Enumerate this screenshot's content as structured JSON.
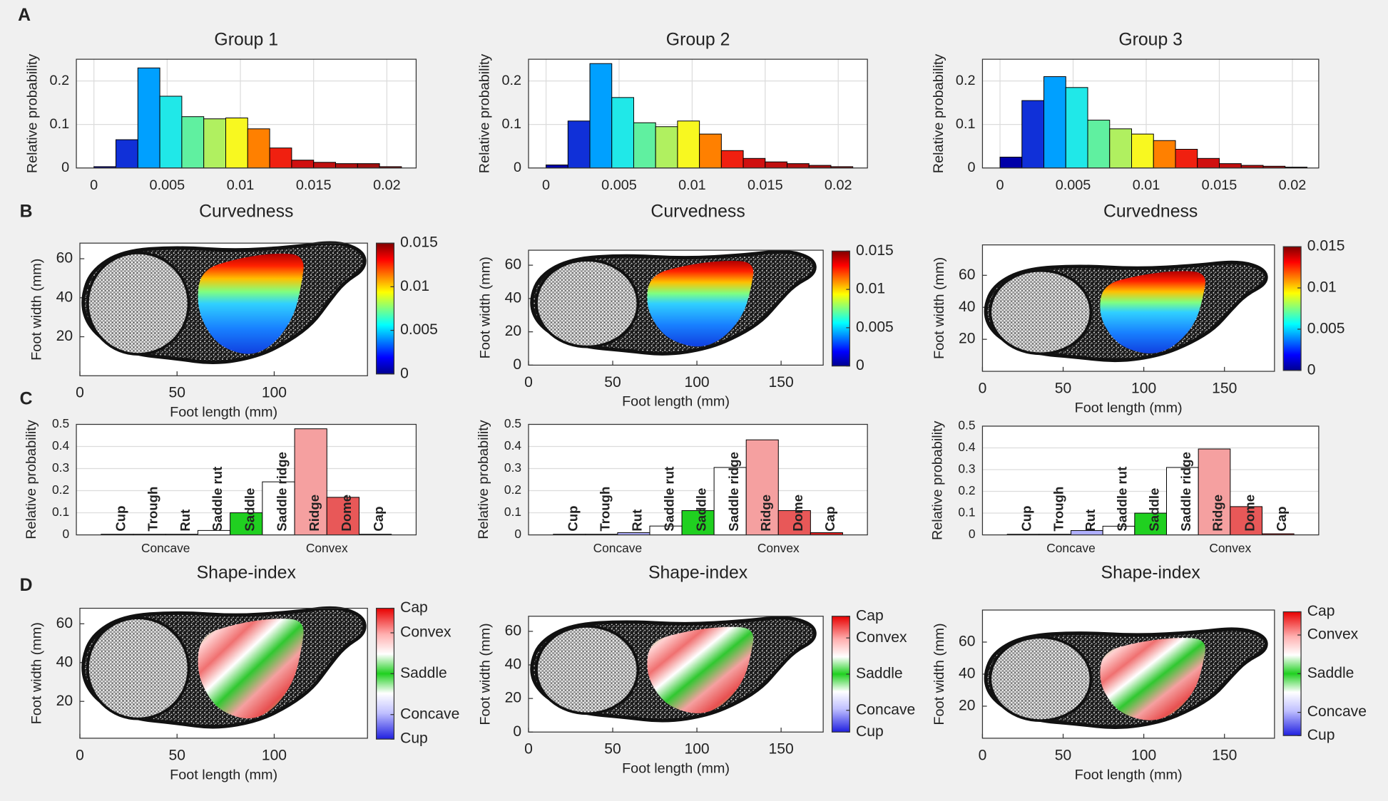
{
  "panel_labels": [
    "A",
    "B",
    "C",
    "D"
  ],
  "chart_data": [
    {
      "type": "histogram",
      "title": "Group 1",
      "xlabel": "Curvedness",
      "ylabel": "Relative probability",
      "bins": [
        0,
        0.0015,
        0.003,
        0.0045,
        0.006,
        0.0075,
        0.009,
        0.0105,
        0.012,
        0.0135,
        0.015,
        0.0165,
        0.018,
        0.0195,
        0.021
      ],
      "values": [
        0.003,
        0.065,
        0.23,
        0.165,
        0.118,
        0.113,
        0.115,
        0.09,
        0.046,
        0.018,
        0.013,
        0.01,
        0.01,
        0.003
      ],
      "colors": [
        "#0000a8",
        "#1030d8",
        "#00a0ff",
        "#20e8e8",
        "#60f0a0",
        "#b0f060",
        "#f8f820",
        "#ff8000",
        "#f02010",
        "#d01010",
        "#c01010",
        "#b01010",
        "#a01010",
        "#901010"
      ],
      "xlim": [
        -0.0012,
        0.022
      ],
      "ylim": [
        0,
        0.25
      ],
      "xticks": [
        0,
        0.005,
        0.01,
        0.015,
        0.02
      ],
      "yticks": [
        0,
        0.1,
        0.2
      ],
      "grid": true
    },
    {
      "type": "histogram",
      "title": "Group 2",
      "xlabel": "Curvedness",
      "ylabel": "Relative probability",
      "bins": [
        0,
        0.0015,
        0.003,
        0.0045,
        0.006,
        0.0075,
        0.009,
        0.0105,
        0.012,
        0.0135,
        0.015,
        0.0165,
        0.018,
        0.0195,
        0.021
      ],
      "values": [
        0.007,
        0.108,
        0.24,
        0.162,
        0.104,
        0.095,
        0.108,
        0.078,
        0.04,
        0.022,
        0.014,
        0.01,
        0.006,
        0.003
      ],
      "colors": [
        "#0000a8",
        "#1030d8",
        "#00a0ff",
        "#20e8e8",
        "#60f0a0",
        "#b0f060",
        "#f8f820",
        "#ff8000",
        "#f02010",
        "#d01010",
        "#c01010",
        "#b01010",
        "#a01010",
        "#901010"
      ],
      "xlim": [
        -0.0012,
        0.022
      ],
      "ylim": [
        0,
        0.25
      ],
      "xticks": [
        0,
        0.005,
        0.01,
        0.015,
        0.02
      ],
      "yticks": [
        0,
        0.1,
        0.2
      ],
      "grid": true
    },
    {
      "type": "histogram",
      "title": "Group 3",
      "xlabel": "Curvedness",
      "ylabel": "Relative probability",
      "bins": [
        0,
        0.0015,
        0.003,
        0.0045,
        0.006,
        0.0075,
        0.009,
        0.0105,
        0.012,
        0.0135,
        0.015,
        0.0165,
        0.018,
        0.0195,
        0.021
      ],
      "values": [
        0.025,
        0.155,
        0.21,
        0.185,
        0.11,
        0.09,
        0.078,
        0.063,
        0.043,
        0.022,
        0.01,
        0.006,
        0.004,
        0.002
      ],
      "colors": [
        "#0000a8",
        "#1030d8",
        "#00a0ff",
        "#20e8e8",
        "#60f0a0",
        "#b0f060",
        "#f8f820",
        "#ff8000",
        "#f02010",
        "#d01010",
        "#c01010",
        "#b01010",
        "#a01010",
        "#901010"
      ],
      "xlim": [
        -0.0012,
        0.0218
      ],
      "ylim": [
        0,
        0.25
      ],
      "xticks": [
        0,
        0.005,
        0.01,
        0.015,
        0.02
      ],
      "yticks": [
        0,
        0.1,
        0.2
      ],
      "grid": true
    },
    {
      "type": "map",
      "xlabel": "Foot length (mm)",
      "ylabel": "Foot width (mm)",
      "map": "curvedness",
      "xlim": [
        0,
        148
      ],
      "ylim": [
        0,
        68
      ],
      "xticks": [
        0,
        50,
        100
      ],
      "yticks": [
        20,
        40,
        60
      ],
      "colorbar": {
        "colormap": "jet",
        "lim": [
          0,
          0.015
        ],
        "ticks": [
          0,
          0.005,
          0.01,
          0.015
        ]
      }
    },
    {
      "type": "map",
      "xlabel": "Foot length (mm)",
      "ylabel": "Foot width (mm)",
      "map": "curvedness",
      "xlim": [
        0,
        175
      ],
      "ylim": [
        0,
        69
      ],
      "xticks": [
        0,
        50,
        100,
        150
      ],
      "yticks": [
        0,
        20,
        40,
        60
      ],
      "colorbar": {
        "colormap": "jet",
        "lim": [
          0,
          0.015
        ],
        "ticks": [
          0,
          0.005,
          0.01,
          0.015
        ]
      }
    },
    {
      "type": "map",
      "xlabel": "Foot length (mm)",
      "ylabel": "Foot width (mm)",
      "map": "curvedness",
      "xlim": [
        0,
        181
      ],
      "ylim": [
        0,
        79
      ],
      "xticks": [
        0,
        50,
        100,
        150
      ],
      "yticks": [
        20,
        40,
        60
      ],
      "colorbar": {
        "colormap": "jet",
        "lim": [
          0,
          0.015
        ],
        "ticks": [
          0,
          0.005,
          0.01,
          0.015
        ]
      }
    },
    {
      "type": "bar",
      "xlabel": "Shape-index",
      "ylabel": "Relative probability",
      "categories": [
        "Cup",
        "Trough",
        "Rut",
        "Saddle rut",
        "Saddle",
        "Saddle ridge",
        "Ridge",
        "Dome",
        "Cap"
      ],
      "values": [
        0.003,
        0.003,
        0.003,
        0.02,
        0.1,
        0.24,
        0.48,
        0.17,
        0.003
      ],
      "colors": [
        "#3030e0",
        "#8080ff",
        "#b0b0ff",
        "#ffffff",
        "#20d020",
        "#ffffff",
        "#f5a0a0",
        "#e85858",
        "#e02020"
      ],
      "group_labels": [
        "Concave",
        "Convex"
      ],
      "ylim": [
        0,
        0.5
      ],
      "yticks": [
        0,
        0.1,
        0.2,
        0.3,
        0.4,
        0.5
      ],
      "grid": true
    },
    {
      "type": "bar",
      "xlabel": "Shape-index",
      "ylabel": "Relative probability",
      "categories": [
        "Cup",
        "Trough",
        "Rut",
        "Saddle rut",
        "Saddle",
        "Saddle ridge",
        "Ridge",
        "Dome",
        "Cap"
      ],
      "values": [
        0.003,
        0.003,
        0.01,
        0.04,
        0.11,
        0.305,
        0.43,
        0.11,
        0.01
      ],
      "colors": [
        "#3030e0",
        "#8080ff",
        "#b0b0ff",
        "#ffffff",
        "#20d020",
        "#ffffff",
        "#f5a0a0",
        "#e85858",
        "#e02020"
      ],
      "group_labels": [
        "Concave",
        "Convex"
      ],
      "ylim": [
        0,
        0.5
      ],
      "yticks": [
        0,
        0.1,
        0.2,
        0.3,
        0.4,
        0.5
      ],
      "grid": true
    },
    {
      "type": "bar",
      "xlabel": "Shape-index",
      "ylabel": "Relative probability",
      "categories": [
        "Cup",
        "Trough",
        "Rut",
        "Saddle rut",
        "Saddle",
        "Saddle ridge",
        "Ridge",
        "Dome",
        "Cap"
      ],
      "values": [
        0.003,
        0.003,
        0.02,
        0.04,
        0.1,
        0.31,
        0.395,
        0.13,
        0.005
      ],
      "colors": [
        "#3030e0",
        "#8080ff",
        "#b0b0ff",
        "#ffffff",
        "#20d020",
        "#ffffff",
        "#f5a0a0",
        "#e85858",
        "#e02020"
      ],
      "group_labels": [
        "Concave",
        "Convex"
      ],
      "ylim": [
        0,
        0.5
      ],
      "yticks": [
        0,
        0.1,
        0.2,
        0.3,
        0.4,
        0.5
      ],
      "grid": true
    },
    {
      "type": "map",
      "xlabel": "Foot length (mm)",
      "ylabel": "Foot width (mm)",
      "map": "shape-index",
      "xlim": [
        0,
        148
      ],
      "ylim": [
        1,
        68
      ],
      "xticks": [
        0,
        50,
        100
      ],
      "yticks": [
        20,
        40,
        60
      ],
      "colorbar": {
        "colormap": "shape-index",
        "lim": [
          -1,
          1
        ],
        "ticks": [
          {
            "value": -1,
            "label": "Cup"
          },
          {
            "value": -0.625,
            "label": "Concave"
          },
          {
            "value": 0,
            "label": "Saddle"
          },
          {
            "value": 0.625,
            "label": "Convex"
          },
          {
            "value": 1,
            "label": "Cap"
          }
        ]
      }
    },
    {
      "type": "map",
      "xlabel": "Foot length (mm)",
      "ylabel": "Foot width (mm)",
      "map": "shape-index",
      "xlim": [
        0,
        175
      ],
      "ylim": [
        0,
        69
      ],
      "xticks": [
        0,
        50,
        100,
        150
      ],
      "yticks": [
        0,
        20,
        40,
        60
      ],
      "colorbar": {
        "colormap": "shape-index",
        "lim": [
          -1,
          1
        ],
        "ticks": [
          {
            "value": -1,
            "label": "Cup"
          },
          {
            "value": -0.625,
            "label": "Concave"
          },
          {
            "value": 0,
            "label": "Saddle"
          },
          {
            "value": 0.625,
            "label": "Convex"
          },
          {
            "value": 1,
            "label": "Cap"
          }
        ]
      }
    },
    {
      "type": "map",
      "xlabel": "Foot length (mm)",
      "ylabel": "Foot width (mm)",
      "map": "shape-index",
      "xlim": [
        0,
        181
      ],
      "ylim": [
        0,
        80
      ],
      "xticks": [
        0,
        50,
        100,
        150
      ],
      "yticks": [
        20,
        40,
        60
      ],
      "colorbar": {
        "colormap": "shape-index",
        "lim": [
          -1,
          1
        ],
        "ticks": [
          {
            "value": -1,
            "label": "Cup"
          },
          {
            "value": -0.625,
            "label": "Concave"
          },
          {
            "value": 0,
            "label": "Saddle"
          },
          {
            "value": 0.625,
            "label": "Convex"
          },
          {
            "value": 1,
            "label": "Cap"
          }
        ]
      }
    }
  ]
}
